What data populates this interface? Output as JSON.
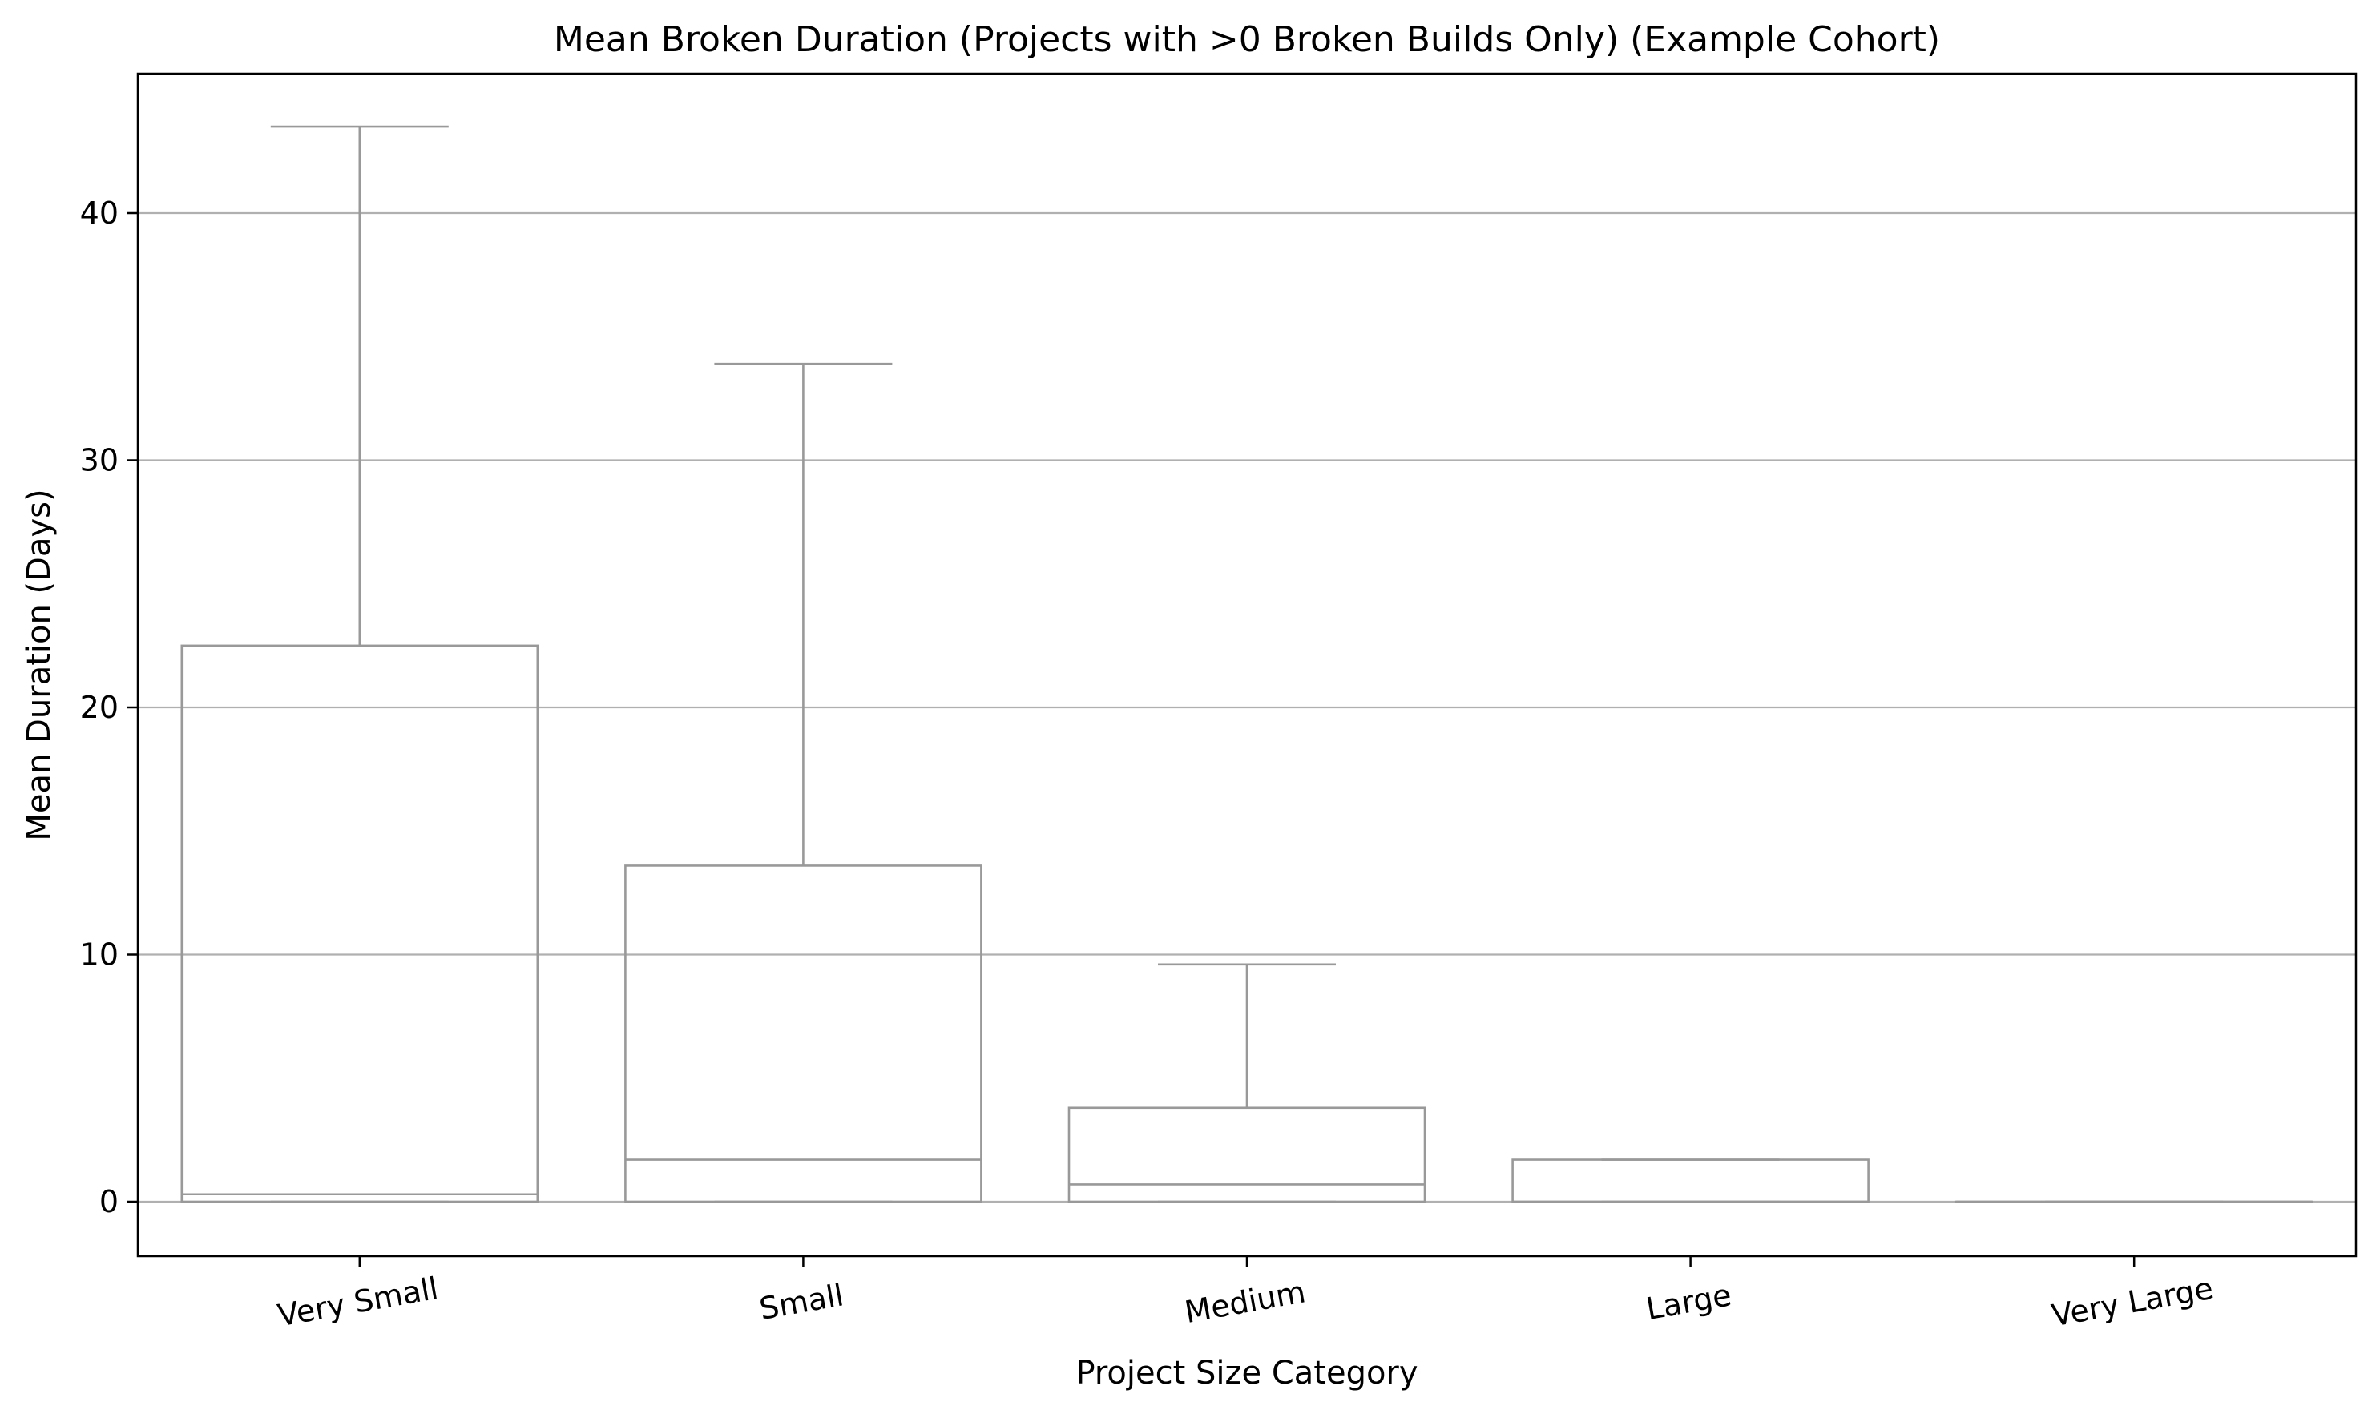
{
  "chart_data": {
    "type": "box",
    "title": "Mean Broken Duration (Projects with >0 Broken Builds Only) (Example Cohort)",
    "xlabel": "Project Size Category",
    "ylabel": "Mean Duration (Days)",
    "categories": [
      "Very Small",
      "Small",
      "Medium",
      "Large",
      "Very Large"
    ],
    "boxes": [
      {
        "category": "Very Small",
        "whisker_low": 0,
        "q1": 0,
        "median": 0.3,
        "q3": 22.5,
        "whisker_high": 43.5
      },
      {
        "category": "Small",
        "whisker_low": 0,
        "q1": 0,
        "median": 1.7,
        "q3": 13.6,
        "whisker_high": 33.9
      },
      {
        "category": "Medium",
        "whisker_low": 0,
        "q1": 0,
        "median": 0.7,
        "q3": 3.8,
        "whisker_high": 9.6
      },
      {
        "category": "Large",
        "whisker_low": 0,
        "q1": 0,
        "median": 0,
        "q3": 1.7,
        "whisker_high": 1.7
      },
      {
        "category": "Very Large",
        "whisker_low": 0,
        "q1": 0,
        "median": 0,
        "q3": 0,
        "whisker_high": 0
      }
    ],
    "yticks": [
      0,
      10,
      20,
      30,
      40
    ],
    "ylim": [
      -2.2,
      45.8
    ],
    "grid": "y",
    "legend": "none",
    "colors": {
      "box": "#999999",
      "grid": "#b0b0b0",
      "axis": "#000000"
    }
  }
}
